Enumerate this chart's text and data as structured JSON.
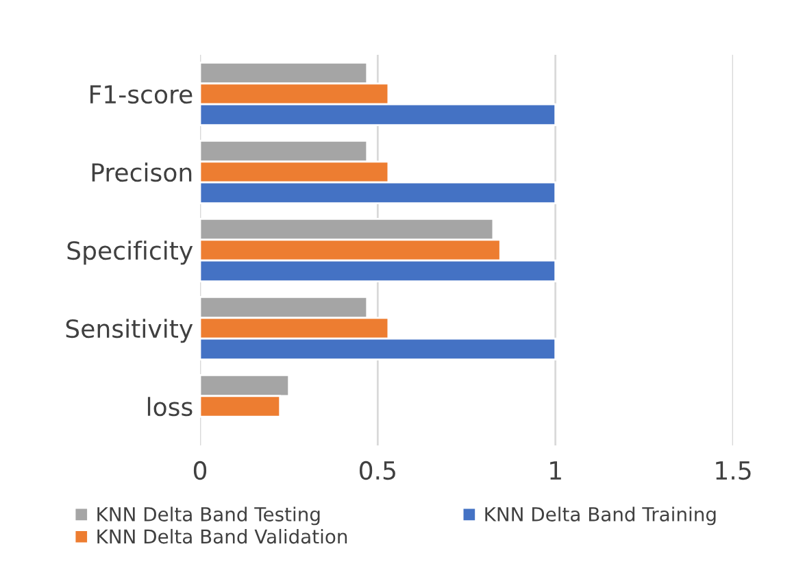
{
  "chart_data": {
    "type": "bar",
    "orientation": "horizontal",
    "categories": [
      "F1-score",
      "Precison",
      "Specificity",
      "Sensitivity",
      "loss"
    ],
    "series": [
      {
        "name": "KNN Delta Band Testing",
        "color": "#a5a5a5",
        "values": [
          0.47,
          0.47,
          0.825,
          0.47,
          0.25
        ]
      },
      {
        "name": "KNN Delta Band Validation",
        "color": "#ed7d31",
        "values": [
          0.53,
          0.53,
          0.845,
          0.53,
          0.225
        ]
      },
      {
        "name": "KNN Delta Band Training",
        "color": "#4472c4",
        "values": [
          1,
          1,
          1,
          1,
          null
        ]
      }
    ],
    "xlim": [
      0,
      1.5
    ],
    "xticks": [
      0,
      0.5,
      1,
      1.5
    ],
    "grid": "x",
    "legend": "bottom"
  }
}
